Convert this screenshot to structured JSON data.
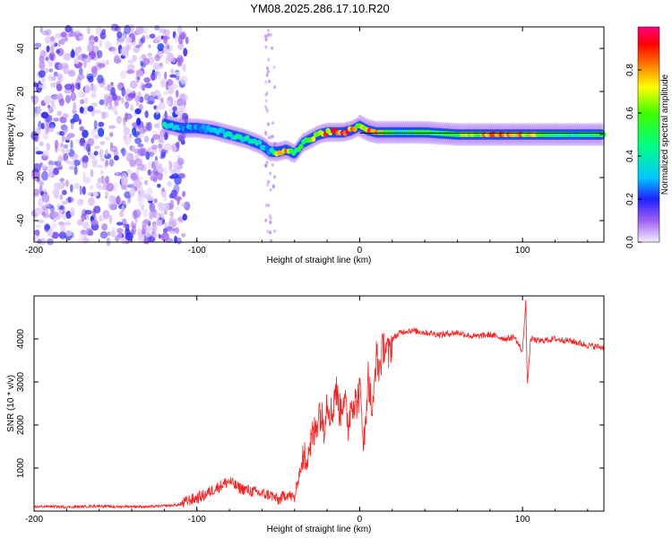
{
  "chart_data": [
    {
      "type": "heatmap",
      "title": "YM08.2025.286.17.10.R20",
      "xlabel": "Height of straight line (km)",
      "ylabel": "Frequency (Hz)",
      "xlim": [
        -200,
        150
      ],
      "ylim": [
        -50,
        50
      ],
      "xticks": [
        "-200",
        "-100",
        "0",
        "100"
      ],
      "yticks": [
        "-40",
        "-20",
        "0",
        "20",
        "40"
      ],
      "colorbar": {
        "label": "Normalized spectral amplitude",
        "range": [
          0,
          1
        ],
        "ticks": [
          "0.0",
          "0.2",
          "0.4",
          "0.6",
          "0.8"
        ]
      },
      "ridge": {
        "x": [
          -120,
          -110,
          -100,
          -90,
          -80,
          -70,
          -60,
          -55,
          -50,
          -45,
          -40,
          -35,
          -30,
          -25,
          -20,
          -10,
          -5,
          0,
          5,
          10,
          20,
          40,
          60,
          80,
          100,
          120,
          150
        ],
        "freq": [
          5,
          3,
          3,
          2,
          0,
          -2,
          -5,
          -8,
          -8,
          -7,
          -9,
          -4,
          -2,
          0,
          1,
          1,
          2,
          4,
          2,
          1,
          1,
          1,
          0,
          0,
          0,
          0,
          0
        ],
        "amplitude": [
          0.4,
          0.3,
          0.3,
          0.35,
          0.4,
          0.45,
          0.4,
          0.3,
          0.95,
          0.9,
          0.6,
          0.55,
          0.7,
          0.7,
          0.9,
          0.95,
          0.9,
          0.6,
          0.9,
          0.9,
          0.5,
          0.55,
          0.6,
          0.9,
          0.85,
          0.5,
          0.5
        ]
      },
      "noise_region": [
        -200,
        -110
      ]
    },
    {
      "type": "line",
      "xlabel": "Height of straight line (km)",
      "ylabel": "SNR (10 * v/v)",
      "xlim": [
        -200,
        150
      ],
      "ylim": [
        0,
        5000
      ],
      "xticks": [
        "-200",
        "-100",
        "0",
        "100"
      ],
      "yticks": [
        "1000",
        "2000",
        "3000",
        "4000"
      ],
      "color": "#ff2020",
      "series": [
        {
          "name": "SNR",
          "x": [
            -200,
            -190,
            -180,
            -170,
            -160,
            -150,
            -140,
            -130,
            -120,
            -110,
            -105,
            -100,
            -95,
            -90,
            -85,
            -80,
            -75,
            -70,
            -65,
            -60,
            -55,
            -50,
            -45,
            -40,
            -37,
            -35,
            -32,
            -30,
            -27,
            -25,
            -22,
            -20,
            -17,
            -15,
            -12,
            -10,
            -7,
            -5,
            -2,
            0,
            3,
            5,
            8,
            10,
            12,
            15,
            18,
            20,
            25,
            30,
            40,
            50,
            60,
            70,
            80,
            90,
            95,
            100,
            102,
            103,
            105,
            110,
            120,
            130,
            140,
            150
          ],
          "y": [
            100,
            110,
            95,
            105,
            120,
            100,
            110,
            100,
            120,
            150,
            250,
            300,
            380,
            500,
            600,
            700,
            550,
            500,
            450,
            400,
            380,
            250,
            400,
            300,
            900,
            1100,
            1400,
            1600,
            1900,
            2400,
            2000,
            2600,
            2200,
            2900,
            2300,
            2700,
            2000,
            2600,
            2500,
            2800,
            1500,
            3200,
            2200,
            3600,
            3300,
            3900,
            3600,
            4000,
            4150,
            4200,
            4150,
            4100,
            4150,
            4050,
            4100,
            4000,
            4050,
            3700,
            4900,
            2900,
            4000,
            3950,
            4000,
            3950,
            3850,
            3800
          ]
        }
      ]
    }
  ]
}
